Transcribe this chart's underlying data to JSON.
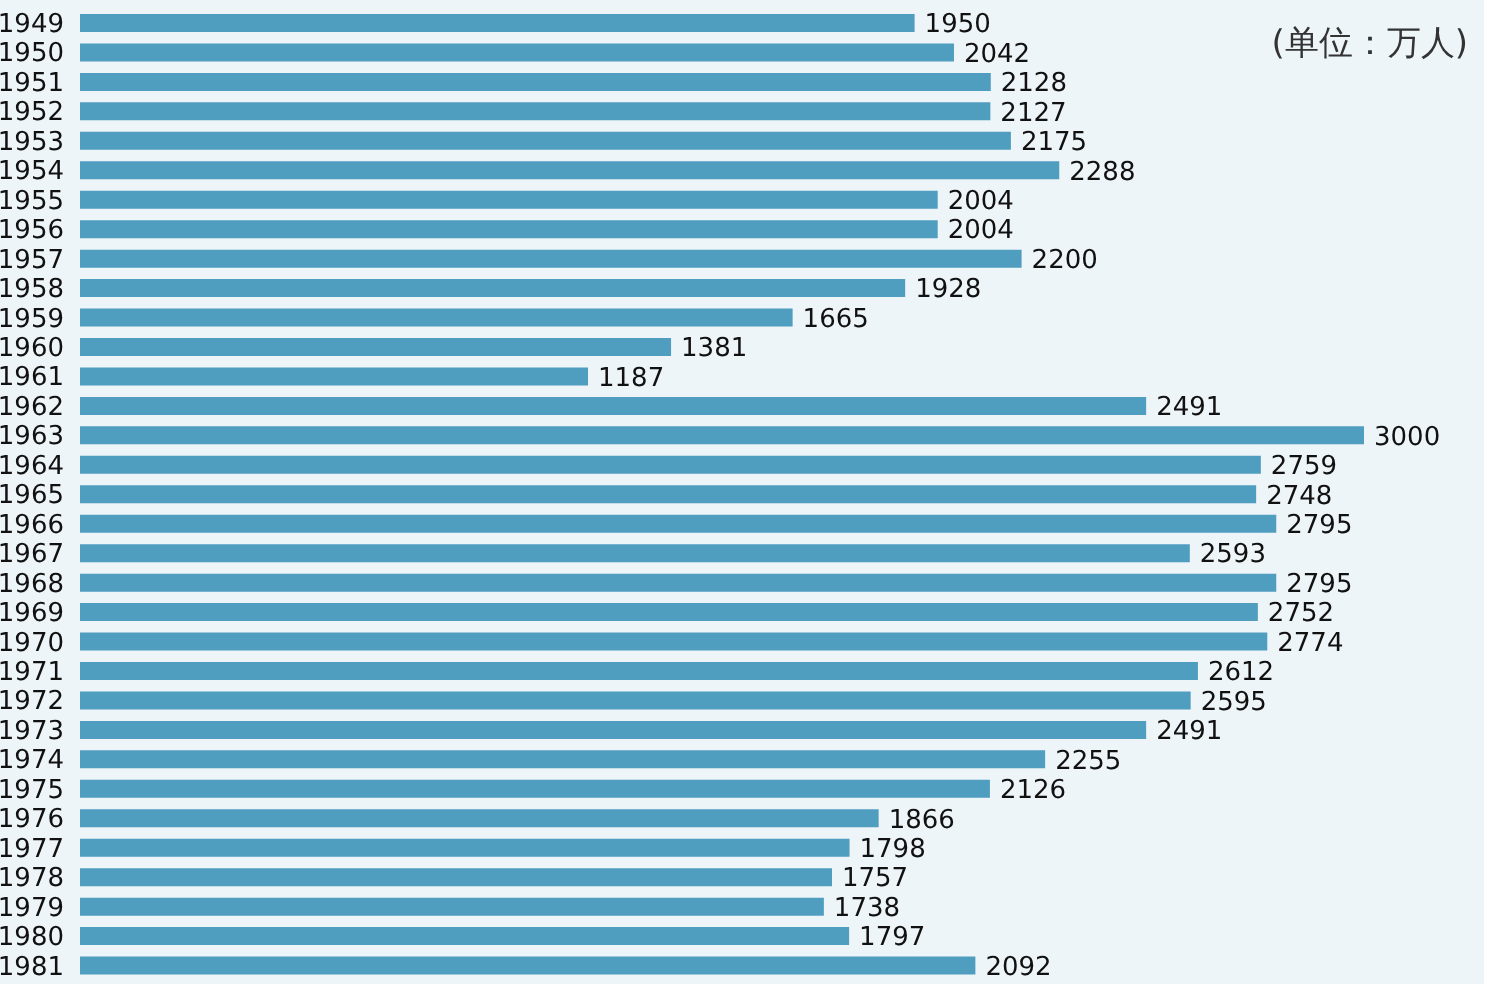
{
  "chart_data": {
    "type": "bar",
    "orientation": "horizontal",
    "categories": [
      "1949",
      "1950",
      "1951",
      "1952",
      "1953",
      "1954",
      "1955",
      "1956",
      "1957",
      "1958",
      "1959",
      "1960",
      "1961",
      "1962",
      "1963",
      "1964",
      "1965",
      "1966",
      "1967",
      "1968",
      "1969",
      "1970",
      "1971",
      "1972",
      "1973",
      "1974",
      "1975",
      "1976",
      "1977",
      "1978",
      "1979",
      "1980",
      "1981"
    ],
    "values": [
      1950,
      2042,
      2128,
      2127,
      2175,
      2288,
      2004,
      2004,
      2200,
      1928,
      1665,
      1381,
      1187,
      2491,
      3000,
      2759,
      2748,
      2795,
      2593,
      2795,
      2752,
      2774,
      2612,
      2595,
      2491,
      2255,
      2126,
      1866,
      1798,
      1757,
      1738,
      1797,
      2092
    ],
    "color": "#4f9dbf",
    "xlim": [
      0,
      3000
    ],
    "data_labels": true,
    "tick_labels": "y",
    "annotations": [
      "(单位：万人)"
    ]
  }
}
